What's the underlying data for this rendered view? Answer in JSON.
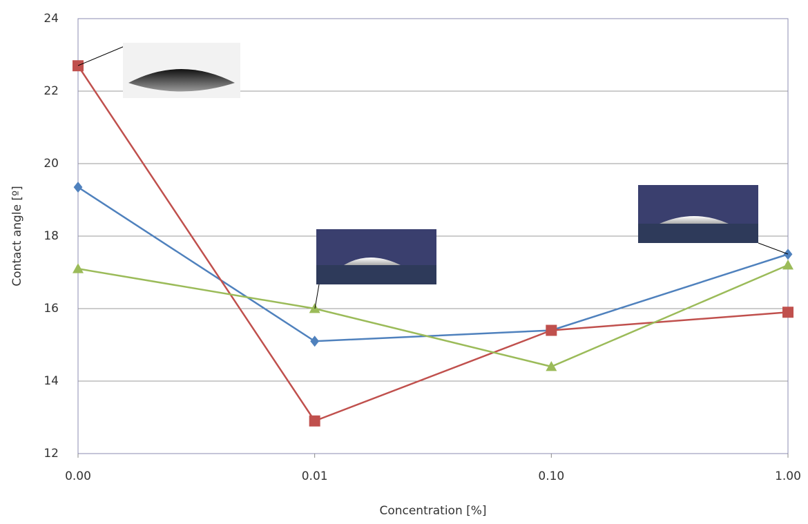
{
  "chart_data": {
    "type": "line",
    "x_label": "Concentration [%]",
    "y_label": "Contact angle [º]",
    "categories": [
      "0.00",
      "0.01",
      "0.10",
      "1.00"
    ],
    "series": [
      {
        "color": "#4f81bd",
        "marker": "diamond",
        "values": [
          19.35,
          15.1,
          15.4,
          17.5
        ]
      },
      {
        "color": "#c0504d",
        "marker": "square",
        "values": [
          22.7,
          12.9,
          15.4,
          15.9
        ]
      },
      {
        "color": "#9bbb59",
        "marker": "triangle",
        "values": [
          17.1,
          16.0,
          14.4,
          17.2
        ]
      }
    ],
    "ylim": [
      12,
      24
    ],
    "yticks": [
      12,
      14,
      16,
      18,
      20,
      22,
      24
    ],
    "grid": true
  }
}
